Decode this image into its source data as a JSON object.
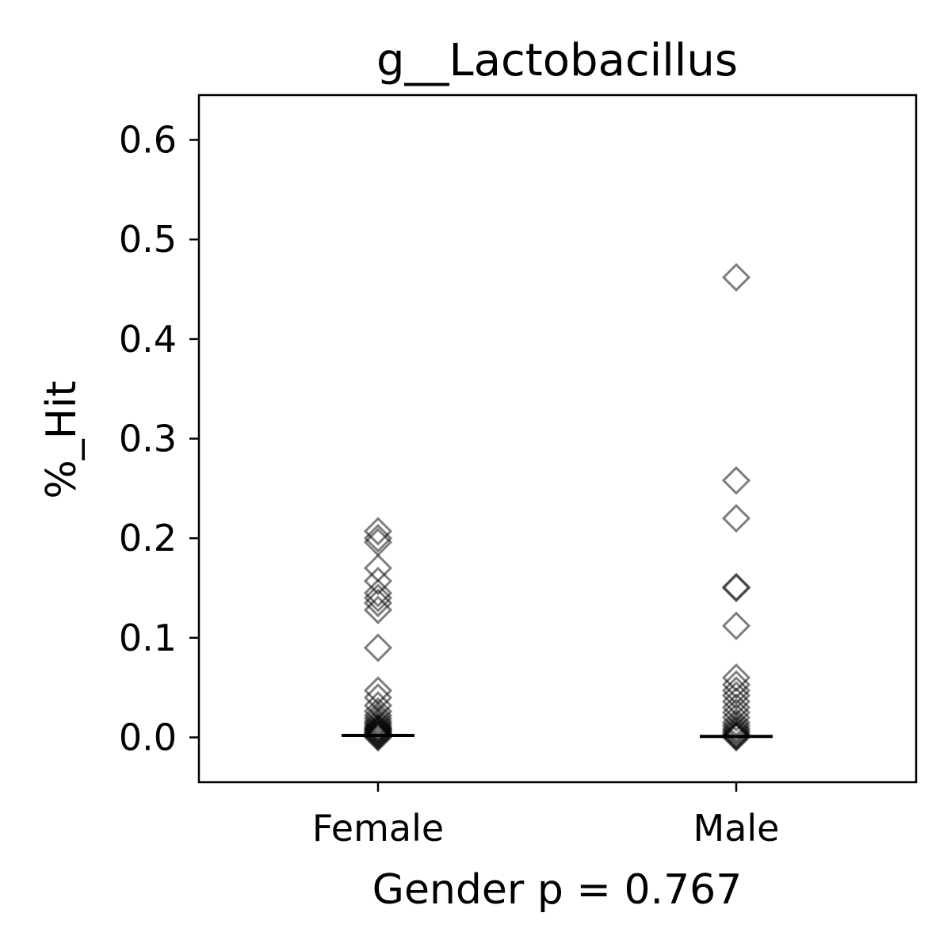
{
  "chart_data": {
    "type": "scatter",
    "title": "g__Lactobacillus",
    "xlabel": "Gender p = 0.767",
    "ylabel": "%_Hit",
    "categories": [
      "Female",
      "Male"
    ],
    "ylim": [
      -0.045,
      0.645
    ],
    "yticks": [
      0.0,
      0.1,
      0.2,
      0.3,
      0.4,
      0.5,
      0.6
    ],
    "ytick_labels": [
      "0.0",
      "0.1",
      "0.2",
      "0.3",
      "0.4",
      "0.5",
      "0.6"
    ],
    "grid": false,
    "marker": "diamond-open",
    "marker_color": "#000000",
    "series": [
      {
        "category": "Female",
        "median": 0.002,
        "values": [
          0.207,
          0.2,
          0.196,
          0.17,
          0.157,
          0.145,
          0.14,
          0.135,
          0.128,
          0.09,
          0.047,
          0.04,
          0.032,
          0.026,
          0.022,
          0.019,
          0.016,
          0.014,
          0.012,
          0.01,
          0.009,
          0.008,
          0.007,
          0.006,
          0.005,
          0.004,
          0.003,
          0.002,
          0.001,
          0.0
        ]
      },
      {
        "category": "Male",
        "median": 0.001,
        "values": [
          0.462,
          0.258,
          0.22,
          0.151,
          0.15,
          0.112,
          0.06,
          0.053,
          0.047,
          0.042,
          0.036,
          0.03,
          0.025,
          0.02,
          0.015,
          0.012,
          0.009,
          0.007,
          0.005,
          0.003,
          0.002,
          0.001,
          0.0
        ]
      }
    ]
  }
}
